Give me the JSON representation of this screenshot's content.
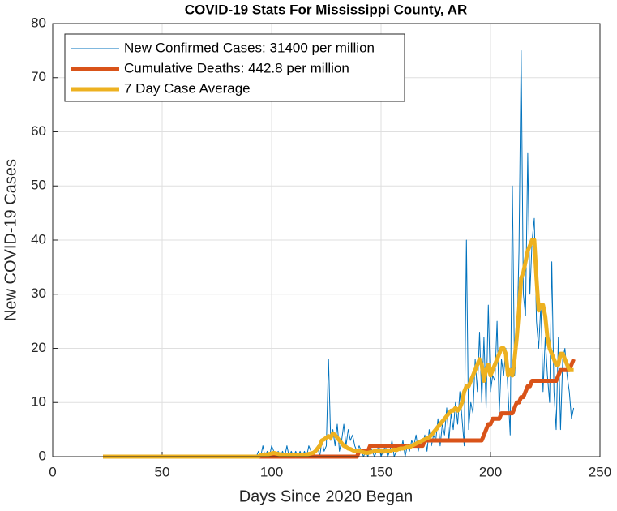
{
  "chart_data": {
    "type": "line",
    "title": "COVID-19 Stats For Mississippi County, AR",
    "x_label": "Days Since 2020 Began",
    "y_label": "New COVID-19 Cases",
    "xlim": [
      0,
      250
    ],
    "xticks": [
      0,
      50,
      100,
      150,
      200,
      250
    ],
    "ylim": [
      0,
      80
    ],
    "yticks": [
      0,
      10,
      20,
      30,
      40,
      50,
      60,
      70,
      80
    ],
    "grid": true,
    "legend": "upper left",
    "x": [
      23,
      24,
      25,
      26,
      27,
      28,
      29,
      30,
      31,
      32,
      33,
      34,
      35,
      36,
      37,
      38,
      39,
      40,
      41,
      42,
      43,
      44,
      45,
      46,
      47,
      48,
      49,
      50,
      51,
      52,
      53,
      54,
      55,
      56,
      57,
      58,
      59,
      60,
      61,
      62,
      63,
      64,
      65,
      66,
      67,
      68,
      69,
      70,
      71,
      72,
      73,
      74,
      75,
      76,
      77,
      78,
      79,
      80,
      81,
      82,
      83,
      84,
      85,
      86,
      87,
      88,
      89,
      90,
      91,
      92,
      93,
      94,
      95,
      96,
      97,
      98,
      99,
      100,
      101,
      102,
      103,
      104,
      105,
      106,
      107,
      108,
      109,
      110,
      111,
      112,
      113,
      114,
      115,
      116,
      117,
      118,
      119,
      120,
      121,
      122,
      123,
      124,
      125,
      126,
      127,
      128,
      129,
      130,
      131,
      132,
      133,
      134,
      135,
      136,
      137,
      138,
      139,
      140,
      141,
      142,
      143,
      144,
      145,
      146,
      147,
      148,
      149,
      150,
      151,
      152,
      153,
      154,
      155,
      156,
      157,
      158,
      159,
      160,
      161,
      162,
      163,
      164,
      165,
      166,
      167,
      168,
      169,
      170,
      171,
      172,
      173,
      174,
      175,
      176,
      177,
      178,
      179,
      180,
      181,
      182,
      183,
      184,
      185,
      186,
      187,
      188,
      189,
      190,
      191,
      192,
      193,
      194,
      195,
      196,
      197,
      198,
      199,
      200,
      201,
      202,
      203,
      204,
      205,
      206,
      207,
      208,
      209,
      210,
      211,
      212,
      213,
      214,
      215,
      216,
      217,
      218,
      219,
      220,
      221,
      222,
      223,
      224,
      225,
      226,
      227,
      228,
      229,
      230,
      231,
      232,
      233,
      234,
      235,
      236,
      237,
      238
    ],
    "series": [
      {
        "name": "New Confirmed Cases: 31400 per million",
        "color": "#0072bd",
        "width": 1,
        "values": [
          0,
          0,
          0,
          0,
          0,
          0,
          0,
          0,
          0,
          0,
          0,
          0,
          0,
          0,
          0,
          0,
          0,
          0,
          0,
          0,
          0,
          0,
          0,
          0,
          0,
          0,
          0,
          0,
          0,
          0,
          0,
          0,
          0,
          0,
          0,
          0,
          0,
          0,
          0,
          0,
          0,
          0,
          0,
          0,
          0,
          0,
          0,
          0,
          0,
          0,
          0,
          0,
          0,
          0,
          0,
          0,
          0,
          0,
          0,
          0,
          0,
          0,
          0,
          0,
          0,
          0,
          0,
          0,
          0,
          0,
          0,
          1,
          0,
          2,
          0,
          1,
          0,
          2,
          1,
          0,
          1,
          0,
          1,
          0,
          2,
          0,
          1,
          0,
          1,
          0,
          1,
          0,
          1,
          0,
          2,
          1,
          0,
          1,
          2,
          0,
          3,
          1,
          2,
          18,
          3,
          5,
          2,
          6,
          1,
          3,
          6,
          2,
          5,
          3,
          4,
          2,
          1,
          2,
          1,
          0,
          1,
          0,
          2,
          1,
          0,
          1,
          2,
          0,
          1,
          2,
          0,
          1,
          3,
          0,
          1,
          2,
          1,
          3,
          0,
          2,
          1,
          3,
          2,
          4,
          1,
          3,
          2,
          4,
          1,
          5,
          2,
          4,
          3,
          7,
          2,
          6,
          4,
          9,
          3,
          8,
          5,
          10,
          6,
          12,
          7,
          2,
          40,
          5,
          10,
          8,
          18,
          12,
          23,
          10,
          22,
          9,
          28,
          12,
          15,
          14,
          25,
          8,
          18,
          15,
          20,
          12,
          4,
          50,
          15,
          20,
          38,
          75,
          30,
          26,
          56,
          30,
          40,
          44,
          25,
          20,
          28,
          12,
          22,
          15,
          10,
          36,
          12,
          5,
          22,
          5,
          18,
          20,
          15,
          12,
          7,
          9
        ]
      },
      {
        "name": "Cumulative Deaths: 442.8 per million",
        "color": "#d95319",
        "width": 5,
        "values": [
          0,
          0,
          0,
          0,
          0,
          0,
          0,
          0,
          0,
          0,
          0,
          0,
          0,
          0,
          0,
          0,
          0,
          0,
          0,
          0,
          0,
          0,
          0,
          0,
          0,
          0,
          0,
          0,
          0,
          0,
          0,
          0,
          0,
          0,
          0,
          0,
          0,
          0,
          0,
          0,
          0,
          0,
          0,
          0,
          0,
          0,
          0,
          0,
          0,
          0,
          0,
          0,
          0,
          0,
          0,
          0,
          0,
          0,
          0,
          0,
          0,
          0,
          0,
          0,
          0,
          0,
          0,
          0,
          0,
          0,
          0,
          0,
          0,
          0,
          0,
          0,
          0,
          0,
          0,
          0,
          0,
          0,
          0,
          0,
          0,
          0,
          0,
          0,
          0,
          0,
          0,
          0,
          0,
          0,
          0,
          0,
          0,
          0,
          0,
          0,
          0,
          0,
          0,
          0,
          0,
          0,
          0,
          0,
          0,
          0,
          0,
          0,
          0,
          0,
          0,
          0,
          0,
          1,
          1,
          1,
          1,
          1,
          2,
          2,
          2,
          2,
          2,
          2,
          2,
          2,
          2,
          2,
          2,
          2,
          2,
          2,
          2,
          2,
          2,
          2,
          2,
          2,
          2,
          2,
          2,
          2,
          2,
          3,
          3,
          3,
          3,
          3,
          3,
          3,
          3,
          3,
          3,
          3,
          3,
          3,
          3,
          3,
          3,
          3,
          3,
          3,
          3,
          3,
          3,
          3,
          3,
          3,
          3,
          3,
          4,
          5,
          6,
          6,
          7,
          7,
          7,
          7,
          8,
          8,
          8,
          8,
          8,
          8,
          9,
          10,
          10,
          11,
          11,
          12,
          13,
          13,
          14,
          14,
          14,
          14,
          14,
          14,
          14,
          14,
          14,
          14,
          14,
          14,
          15,
          16,
          16,
          16,
          16,
          16,
          17,
          18
        ]
      },
      {
        "name": "7 Day Case Average",
        "color": "#edb120",
        "width": 5,
        "values": [
          0,
          0,
          0,
          0,
          0,
          0,
          0,
          0,
          0,
          0,
          0,
          0,
          0,
          0,
          0,
          0,
          0,
          0,
          0,
          0,
          0,
          0,
          0,
          0,
          0,
          0,
          0,
          0,
          0,
          0,
          0,
          0,
          0,
          0,
          0,
          0,
          0,
          0,
          0,
          0,
          0,
          0,
          0,
          0,
          0,
          0,
          0,
          0,
          0,
          0,
          0,
          0,
          0,
          0,
          0,
          0,
          0,
          0,
          0,
          0,
          0,
          0,
          0,
          0,
          0,
          0,
          0,
          0,
          0,
          0,
          0,
          0,
          0.3,
          0.3,
          0.4,
          0.4,
          0.5,
          0.6,
          0.7,
          0.6,
          0.5,
          0.4,
          0.4,
          0.3,
          0.3,
          0.4,
          0.3,
          0.3,
          0.2,
          0.3,
          0.3,
          0.4,
          0.3,
          0.4,
          0.5,
          0.6,
          0.7,
          1,
          1.5,
          2,
          3,
          3.2,
          3.5,
          3.8,
          3.5,
          4.3,
          4,
          3.5,
          3,
          2.5,
          2,
          1.8,
          1.5,
          1.4,
          1.2,
          1,
          1,
          1,
          0.9,
          0.8,
          0.7,
          0.7,
          0.8,
          0.9,
          1,
          1.1,
          1,
          1,
          0.9,
          1,
          1.1,
          1,
          1.2,
          1.3,
          1.2,
          1.4,
          1.5,
          1.5,
          1.6,
          1.8,
          1.7,
          2,
          2.2,
          2.4,
          2.6,
          2.8,
          3,
          3.2,
          3.4,
          3.6,
          4,
          4.5,
          5,
          5.5,
          6,
          6.5,
          7,
          7.5,
          8,
          8.5,
          8.5,
          9,
          8.5,
          9,
          10,
          12,
          13,
          13,
          14,
          15,
          16,
          17,
          18,
          17,
          14,
          16,
          17,
          15,
          16,
          17,
          18,
          19,
          20,
          20,
          19,
          15,
          16,
          15,
          18,
          22,
          27,
          33,
          34,
          36,
          38,
          39,
          40,
          40,
          33,
          27,
          28,
          28,
          26,
          22,
          20,
          19,
          18,
          17,
          17,
          19,
          19,
          18,
          17,
          16,
          16,
          16
        ]
      }
    ]
  }
}
